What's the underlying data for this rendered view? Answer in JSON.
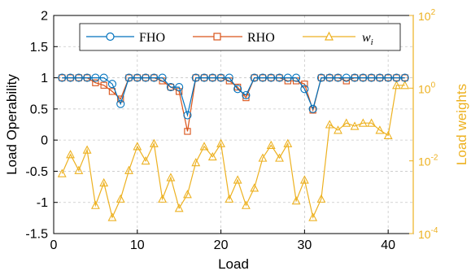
{
  "chart_data": {
    "type": "line",
    "xlabel": "Load",
    "ylabel_left": "Load Operability",
    "ylabel_right": "Load weights",
    "xlim": [
      0,
      43
    ],
    "ylim_left": [
      -1.5,
      2
    ],
    "ylim_right": [
      0.0001,
      100
    ],
    "right_axis_scale": "log",
    "xticks": [
      0,
      10,
      20,
      30,
      40
    ],
    "xtick_labels": [
      "0",
      "10",
      "20",
      "30",
      "40"
    ],
    "yticks_left": [
      -1.5,
      -1,
      -0.5,
      0,
      0.5,
      1,
      1.5,
      2
    ],
    "ytick_labels_left": [
      "-1.5",
      "-1",
      "-0.5",
      "0",
      "0.5",
      "1",
      "1.5",
      "2"
    ],
    "yticks_right": [
      0.0001,
      0.01,
      1,
      100
    ],
    "ytick_labels_right": [
      {
        "base": "10",
        "exp": "-4"
      },
      {
        "base": "10",
        "exp": "-2"
      },
      {
        "base": "10",
        "exp": "0"
      },
      {
        "base": "10",
        "exp": "2"
      }
    ],
    "grid": true,
    "legend_position": "top",
    "x": [
      1,
      2,
      3,
      4,
      5,
      6,
      7,
      8,
      9,
      10,
      11,
      12,
      13,
      14,
      15,
      16,
      17,
      18,
      19,
      20,
      21,
      22,
      23,
      24,
      25,
      26,
      27,
      28,
      29,
      30,
      31,
      32,
      33,
      34,
      35,
      36,
      37,
      38,
      39,
      40,
      41,
      42
    ],
    "series": [
      {
        "name": "FHO",
        "axis": "left",
        "color": "#0072BD",
        "marker": "circle",
        "values": [
          1,
          1,
          1,
          1,
          1,
          1,
          0.9,
          0.58,
          1,
          1,
          1,
          1,
          1,
          0.85,
          0.85,
          0.4,
          1,
          1,
          1,
          1,
          1,
          0.82,
          0.72,
          1,
          1,
          1,
          1,
          1,
          1,
          0.82,
          0.5,
          1,
          1,
          1,
          1,
          1,
          1,
          1,
          1,
          1,
          1,
          1
        ]
      },
      {
        "name": "RHO",
        "axis": "left",
        "color": "#D95319",
        "marker": "square",
        "values": [
          1,
          1,
          1,
          1,
          0.92,
          0.88,
          0.78,
          0.66,
          1,
          1,
          1,
          1,
          0.95,
          0.85,
          0.78,
          0.14,
          1,
          1,
          1,
          1,
          0.95,
          0.85,
          0.68,
          1,
          1,
          1,
          1,
          0.95,
          0.95,
          0.9,
          0.48,
          1,
          1,
          1,
          0.95,
          1,
          1,
          1,
          1,
          1,
          1,
          1
        ]
      },
      {
        "name_base": "w",
        "name_sub": "i",
        "axis": "right",
        "color": "#EDB120",
        "marker": "triangle",
        "values": [
          0.0045,
          0.015,
          0.0055,
          0.02,
          0.0006,
          0.0025,
          0.00028,
          0.0009,
          0.0055,
          0.025,
          0.01,
          0.03,
          0.0009,
          0.0035,
          0.0005,
          0.0012,
          0.009,
          0.025,
          0.013,
          0.03,
          0.0009,
          0.003,
          0.0006,
          0.0018,
          0.012,
          0.027,
          0.012,
          0.03,
          0.0008,
          0.003,
          0.00028,
          0.0009,
          0.1,
          0.07,
          0.11,
          0.09,
          0.11,
          0.11,
          0.07,
          0.05,
          1.2,
          1.2
        ]
      }
    ]
  }
}
